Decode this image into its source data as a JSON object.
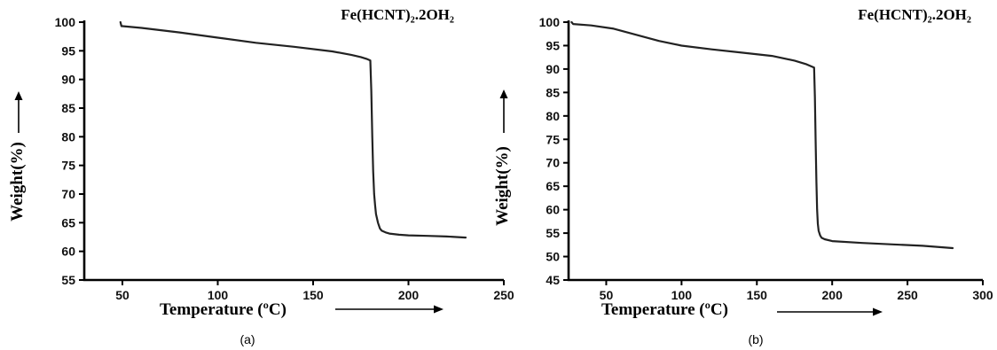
{
  "chart_data": [
    {
      "type": "line",
      "title": "Fe(HCNT)₂.2OH₂",
      "xlabel": "Temperature (ºC)",
      "ylabel": "Weight(%)",
      "panel_label": "(a)",
      "xlim": [
        30,
        250
      ],
      "ylim": [
        55,
        100
      ],
      "xticks": [
        50,
        100,
        150,
        200,
        250
      ],
      "yticks": [
        55,
        60,
        65,
        70,
        75,
        80,
        85,
        90,
        95,
        100
      ],
      "grid": false,
      "series": [
        {
          "x": [
            49,
            49.5,
            50,
            60,
            80,
            100,
            120,
            140,
            160,
            170,
            175,
            178,
            180,
            180.5,
            181,
            181.5,
            182,
            182.5,
            183,
            184,
            185,
            186,
            188,
            190,
            195,
            200,
            210,
            220,
            230
          ],
          "values": [
            100,
            99.3,
            99.3,
            99.0,
            98.2,
            97.3,
            96.4,
            95.7,
            94.9,
            94.3,
            93.9,
            93.6,
            93.3,
            88,
            80,
            74,
            70,
            68,
            66.5,
            65,
            64,
            63.6,
            63.3,
            63.1,
            62.9,
            62.8,
            62.7,
            62.6,
            62.4
          ]
        }
      ]
    },
    {
      "type": "line",
      "title": "Fe(HCNT)₂.2OH₂",
      "xlabel": "Temperature (ºC)",
      "ylabel": "Weight(%)",
      "panel_label": "(b)",
      "xlim": [
        25,
        300
      ],
      "ylim": [
        45,
        100
      ],
      "xticks": [
        50,
        100,
        150,
        200,
        250,
        300
      ],
      "yticks": [
        45,
        50,
        55,
        60,
        65,
        70,
        75,
        80,
        85,
        90,
        95,
        100
      ],
      "grid": false,
      "series": [
        {
          "x": [
            27,
            28,
            40,
            55,
            70,
            85,
            100,
            120,
            140,
            160,
            175,
            183,
            188,
            188.5,
            189,
            189.5,
            190,
            190.5,
            191,
            192,
            193,
            195,
            200,
            220,
            240,
            260,
            280
          ],
          "values": [
            100,
            99.6,
            99.3,
            98.6,
            97.3,
            96.0,
            95.0,
            94.2,
            93.5,
            92.8,
            91.8,
            91.0,
            90.3,
            84,
            75,
            66,
            60,
            57,
            55.5,
            54.5,
            54.0,
            53.7,
            53.3,
            52.9,
            52.6,
            52.3,
            51.8
          ]
        }
      ]
    }
  ]
}
